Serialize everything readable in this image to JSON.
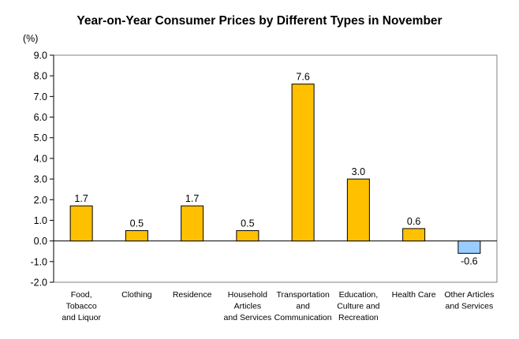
{
  "chart_data": {
    "type": "bar",
    "title": "Year-on-Year Consumer Prices by Different Types in November",
    "unit": "(%)",
    "categories": [
      [
        "Food,",
        "Tobacco",
        "and Liquor"
      ],
      [
        "Clothing"
      ],
      [
        "Residence"
      ],
      [
        "Household",
        "Articles",
        "and Services"
      ],
      [
        "Transportation",
        "and",
        "Communication"
      ],
      [
        "Education,",
        "Culture and",
        "Recreation"
      ],
      [
        "Health Care"
      ],
      [
        "Other Articles",
        "and Services"
      ]
    ],
    "values": [
      1.7,
      0.5,
      1.7,
      0.5,
      7.6,
      3.0,
      0.6,
      -0.6
    ],
    "value_labels": [
      "1.7",
      "0.5",
      "1.7",
      "0.5",
      "7.6",
      "3.0",
      "0.6",
      "-0.6"
    ],
    "yticks": [
      "9.0",
      "8.0",
      "7.0",
      "6.0",
      "5.0",
      "4.0",
      "3.0",
      "2.0",
      "1.0",
      "0.0",
      "-1.0",
      "-2.0"
    ],
    "ylim": [
      -2,
      9
    ],
    "grid": false,
    "colors": {
      "positive": "#FFC000",
      "negative": "#99CCFF",
      "border": "#000000"
    }
  }
}
